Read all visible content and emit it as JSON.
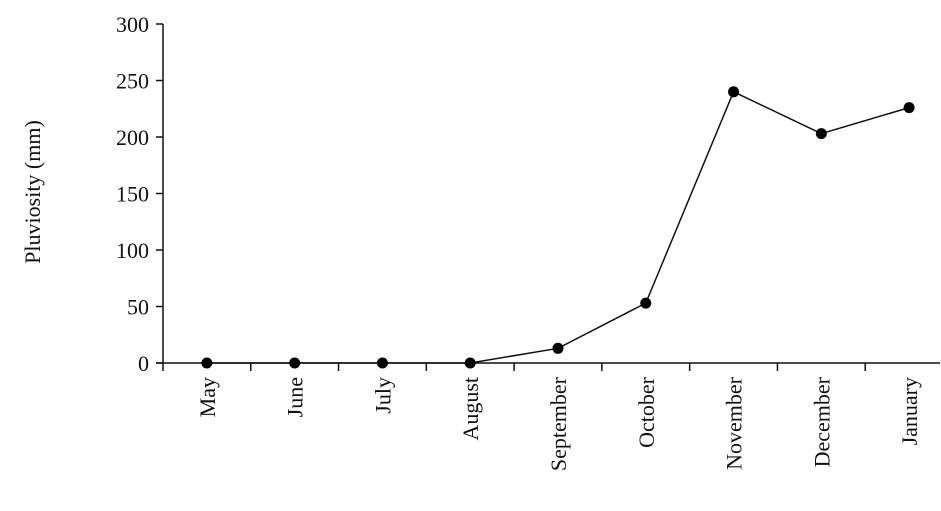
{
  "chart_data": {
    "type": "line",
    "title": "",
    "xlabel": "",
    "ylabel": "Pluviosity (mm)",
    "ylim": [
      0,
      300
    ],
    "yticks": [
      0,
      50,
      100,
      150,
      200,
      250,
      300
    ],
    "grid": false,
    "categories": [
      "May",
      "June",
      "July",
      "August",
      "September",
      "October",
      "November",
      "December",
      "January"
    ],
    "series": [
      {
        "values": [
          0,
          0,
          0,
          0,
          13,
          53,
          240,
          203,
          226
        ]
      }
    ],
    "colors": {
      "line": "#111111",
      "marker": "#000000",
      "axis": "#111111"
    }
  }
}
